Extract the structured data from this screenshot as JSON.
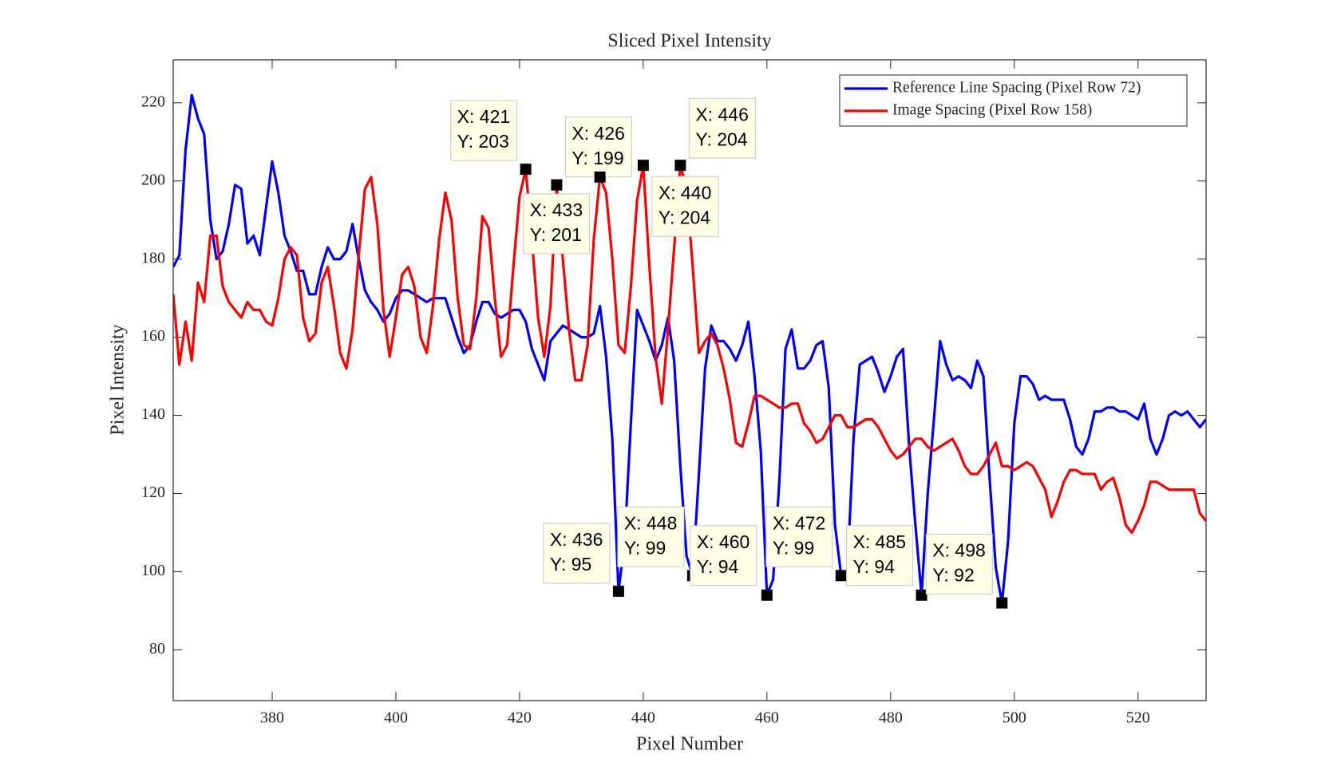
{
  "chart_data": {
    "type": "line",
    "title": "Sliced Pixel Intensity",
    "x_label": "Pixel Number",
    "y_label": "Pixel Intensity",
    "x": [
      364,
      365,
      366,
      367,
      368,
      369,
      370,
      371,
      372,
      373,
      374,
      375,
      376,
      377,
      378,
      379,
      380,
      381,
      382,
      383,
      384,
      385,
      386,
      387,
      388,
      389,
      390,
      391,
      392,
      393,
      394,
      395,
      396,
      397,
      398,
      399,
      400,
      401,
      402,
      403,
      404,
      405,
      406,
      407,
      408,
      409,
      410,
      411,
      412,
      413,
      414,
      415,
      416,
      417,
      418,
      419,
      420,
      421,
      422,
      423,
      424,
      425,
      426,
      427,
      428,
      429,
      430,
      431,
      432,
      433,
      434,
      435,
      436,
      437,
      438,
      439,
      440,
      441,
      442,
      443,
      444,
      445,
      446,
      447,
      448,
      449,
      450,
      451,
      452,
      453,
      454,
      455,
      456,
      457,
      458,
      459,
      460,
      461,
      462,
      463,
      464,
      465,
      466,
      467,
      468,
      469,
      470,
      471,
      472,
      473,
      474,
      475,
      476,
      477,
      478,
      479,
      480,
      481,
      482,
      483,
      484,
      485,
      486,
      487,
      488,
      489,
      490,
      491,
      492,
      493,
      494,
      495,
      496,
      497,
      498,
      499,
      500,
      501,
      502,
      503,
      504,
      505,
      506,
      507,
      508,
      509,
      510,
      511,
      512,
      513,
      514,
      515,
      516,
      517,
      518,
      519,
      520,
      521,
      522,
      523,
      524,
      525,
      526,
      527,
      528,
      529,
      530,
      531
    ],
    "series": [
      {
        "name": "Reference Line Spacing (Pixel Row 72)",
        "color": "#0000ff",
        "values": [
          178,
          181,
          208,
          222,
          216,
          212,
          190,
          180,
          182,
          189,
          199,
          198,
          184,
          186,
          181,
          193,
          205,
          197,
          186,
          182,
          177,
          177,
          171,
          171,
          178,
          183,
          180,
          180,
          182,
          189,
          180,
          172,
          169,
          167,
          164,
          166,
          170,
          172,
          172,
          171,
          170,
          169,
          170,
          170,
          170,
          165,
          160,
          156,
          158,
          164,
          169,
          169,
          166,
          165,
          166,
          167,
          167,
          164,
          157,
          153,
          149,
          159,
          161,
          163,
          162,
          161,
          160,
          160,
          161,
          168,
          155,
          134,
          95,
          108,
          138,
          167,
          163,
          159,
          154,
          158,
          165,
          154,
          127,
          104,
          99,
          125,
          152,
          163,
          159,
          159,
          157,
          154,
          158,
          164,
          150,
          131,
          94,
          98,
          123,
          157,
          162,
          152,
          152,
          154,
          158,
          159,
          147,
          112,
          99,
          100,
          134,
          153,
          154,
          155,
          151,
          146,
          150,
          155,
          157,
          132,
          112,
          94,
          120,
          139,
          159,
          153,
          149,
          150,
          149,
          147,
          154,
          150,
          124,
          101,
          92,
          108,
          138,
          150,
          150,
          148,
          144,
          145,
          144,
          144,
          144,
          139,
          132,
          130,
          134,
          141,
          141,
          142,
          142,
          141,
          141,
          140,
          139,
          143,
          134,
          130,
          134,
          140,
          141,
          140,
          141,
          139,
          137,
          139
        ]
      },
      {
        "name": "Image Spacing (Pixel Row 158)",
        "color": "#ff0000",
        "values": [
          171,
          153,
          164,
          154,
          174,
          169,
          186,
          186,
          173,
          169,
          167,
          165,
          169,
          167,
          167,
          164,
          163,
          170,
          180,
          183,
          181,
          165,
          159,
          161,
          174,
          178,
          168,
          156,
          152,
          162,
          181,
          198,
          201,
          189,
          167,
          155,
          165,
          176,
          178,
          173,
          160,
          156,
          168,
          185,
          197,
          190,
          170,
          158,
          157,
          170,
          191,
          188,
          170,
          155,
          158,
          178,
          196,
          203,
          185,
          165,
          155,
          168,
          199,
          180,
          162,
          149,
          149,
          158,
          185,
          201,
          197,
          180,
          158,
          156,
          173,
          195,
          204,
          178,
          155,
          143,
          162,
          183,
          204,
          198,
          178,
          156,
          159,
          161,
          158,
          152,
          144,
          133,
          132,
          138,
          145,
          145,
          144,
          143,
          142,
          142,
          143,
          143,
          138,
          136,
          133,
          134,
          137,
          140,
          140,
          137,
          137,
          138,
          139,
          139,
          137,
          134,
          131,
          129,
          130,
          132,
          134,
          134,
          132,
          131,
          132,
          133,
          134,
          131,
          127,
          125,
          125,
          127,
          130,
          133,
          127,
          127,
          126,
          127,
          128,
          127,
          124,
          121,
          114,
          118,
          123,
          126,
          126,
          125,
          125,
          125,
          121,
          123,
          124,
          119,
          112,
          110,
          113,
          117,
          123,
          123,
          122,
          121,
          121,
          121,
          121,
          121,
          115,
          113
        ]
      }
    ],
    "datatips": [
      {
        "series": 1,
        "x": 421,
        "y": 203,
        "x_label": "X: 421",
        "y_label": "Y: 203"
      },
      {
        "series": 1,
        "x": 426,
        "y": 199,
        "x_label": "X: 426",
        "y_label": "Y: 199"
      },
      {
        "series": 1,
        "x": 433,
        "y": 201,
        "x_label": "X: 433",
        "y_label": "Y: 201"
      },
      {
        "series": 1,
        "x": 440,
        "y": 204,
        "x_label": "X: 440",
        "y_label": "Y: 204"
      },
      {
        "series": 1,
        "x": 446,
        "y": 204,
        "x_label": "X: 446",
        "y_label": "Y: 204"
      },
      {
        "series": 0,
        "x": 436,
        "y": 95,
        "x_label": "X: 436",
        "y_label": "Y: 95"
      },
      {
        "series": 0,
        "x": 448,
        "y": 99,
        "x_label": "X: 448",
        "y_label": "Y: 99"
      },
      {
        "series": 0,
        "x": 460,
        "y": 94,
        "x_label": "X: 460",
        "y_label": "Y: 94"
      },
      {
        "series": 0,
        "x": 472,
        "y": 99,
        "x_label": "X: 472",
        "y_label": "Y: 99"
      },
      {
        "series": 0,
        "x": 485,
        "y": 94,
        "x_label": "X: 485",
        "y_label": "Y: 94"
      },
      {
        "series": 0,
        "x": 498,
        "y": 92,
        "x_label": "X: 498",
        "y_label": "Y: 92"
      }
    ],
    "xlim": [
      364,
      531
    ],
    "ylim": [
      67,
      231
    ],
    "xticks": [
      380,
      400,
      420,
      440,
      460,
      480,
      500,
      520
    ],
    "yticks": [
      80,
      100,
      120,
      140,
      160,
      180,
      200,
      220
    ],
    "grid": false,
    "legend": "northeast"
  }
}
